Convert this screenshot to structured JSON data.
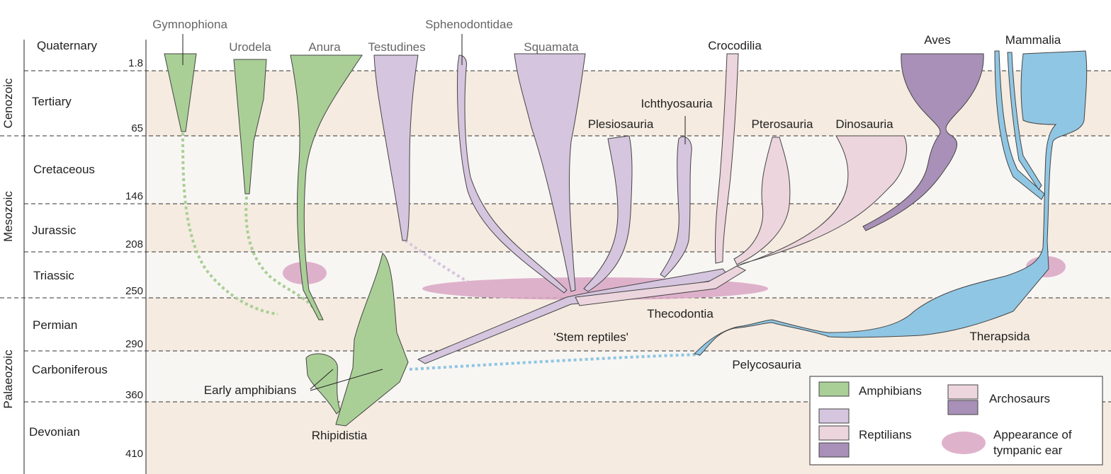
{
  "eras": [
    {
      "name": "Cenozoic"
    },
    {
      "name": "Mesozoic"
    },
    {
      "name": "Palaeozoic"
    }
  ],
  "periods": [
    {
      "name": "Quaternary",
      "boundary": "1.8"
    },
    {
      "name": "Tertiary",
      "boundary": "65"
    },
    {
      "name": "Cretaceous",
      "boundary": "146"
    },
    {
      "name": "Jurassic",
      "boundary": "208"
    },
    {
      "name": "Triassic",
      "boundary": "250"
    },
    {
      "name": "Permian",
      "boundary": "290"
    },
    {
      "name": "Carboniferous",
      "boundary": "360"
    },
    {
      "name": "Devonian",
      "boundary": "410"
    }
  ],
  "taxa": {
    "gymnophiona": "Gymnophiona",
    "urodela": "Urodela",
    "anura": "Anura",
    "testudines": "Testudines",
    "sphenodontidae": "Sphenodontidae",
    "squamata": "Squamata",
    "crocodilia": "Crocodilia",
    "aves": "Aves",
    "mammalia": "Mammalia",
    "plesiosauria": "Plesiosauria",
    "ichthyosauria": "Ichthyosauria",
    "pterosauria": "Pterosauria",
    "dinosauria": "Dinosauria",
    "thecodontia": "Thecodontia",
    "stem_reptiles": "'Stem reptiles'",
    "therapsida": "Therapsida",
    "pelycosauria": "Pelycosauria",
    "early_amphibians": "Early amphibians",
    "rhipidistia": "Rhipidistia"
  },
  "legend": {
    "amphibians": "Amphibians",
    "archosaurs": "Archosaurs",
    "reptilians": "Reptilians",
    "tympanic_line1": "Appearance of",
    "tympanic_line2": "tympanic ear"
  },
  "colors": {
    "amphibians": "#a9cf96",
    "reptilians": "#d5c5de",
    "archosaurs_light": "#ecd5dd",
    "archosaurs_dark": "#a890b8",
    "mammals": "#8fc6e3",
    "tympanic_ear": "#d9a5c3",
    "band_tan": "#f5ebe0",
    "band_light": "#f8f6f3"
  }
}
